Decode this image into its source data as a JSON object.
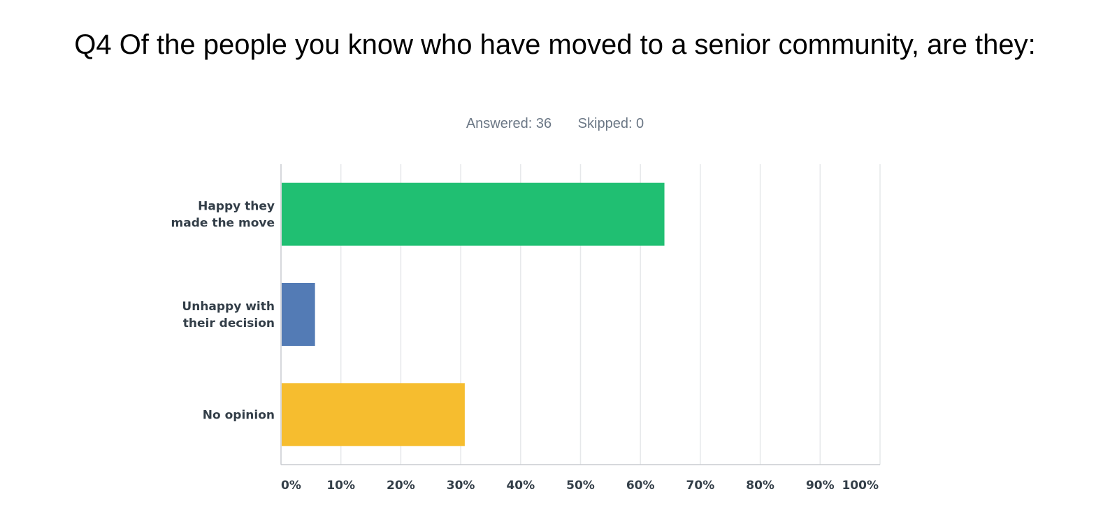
{
  "title": "Q4 Of the people you know who have moved to a senior community, are they:",
  "answered": "Answered: 36",
  "skipped": "Skipped: 0",
  "chart_data": {
    "type": "bar",
    "orientation": "horizontal",
    "categories": [
      [
        "Happy they",
        "made the move"
      ],
      [
        "Unhappy with",
        "their decision"
      ],
      [
        "No opinion"
      ]
    ],
    "values": [
      63.89,
      5.56,
      30.56
    ],
    "colors": [
      "#20bf72",
      "#537bb5",
      "#f6bd2f"
    ],
    "xlim": [
      0,
      100
    ],
    "xticks": [
      "0%",
      "10%",
      "20%",
      "30%",
      "40%",
      "50%",
      "60%",
      "70%",
      "80%",
      "90%",
      "100%"
    ],
    "grid": true
  }
}
